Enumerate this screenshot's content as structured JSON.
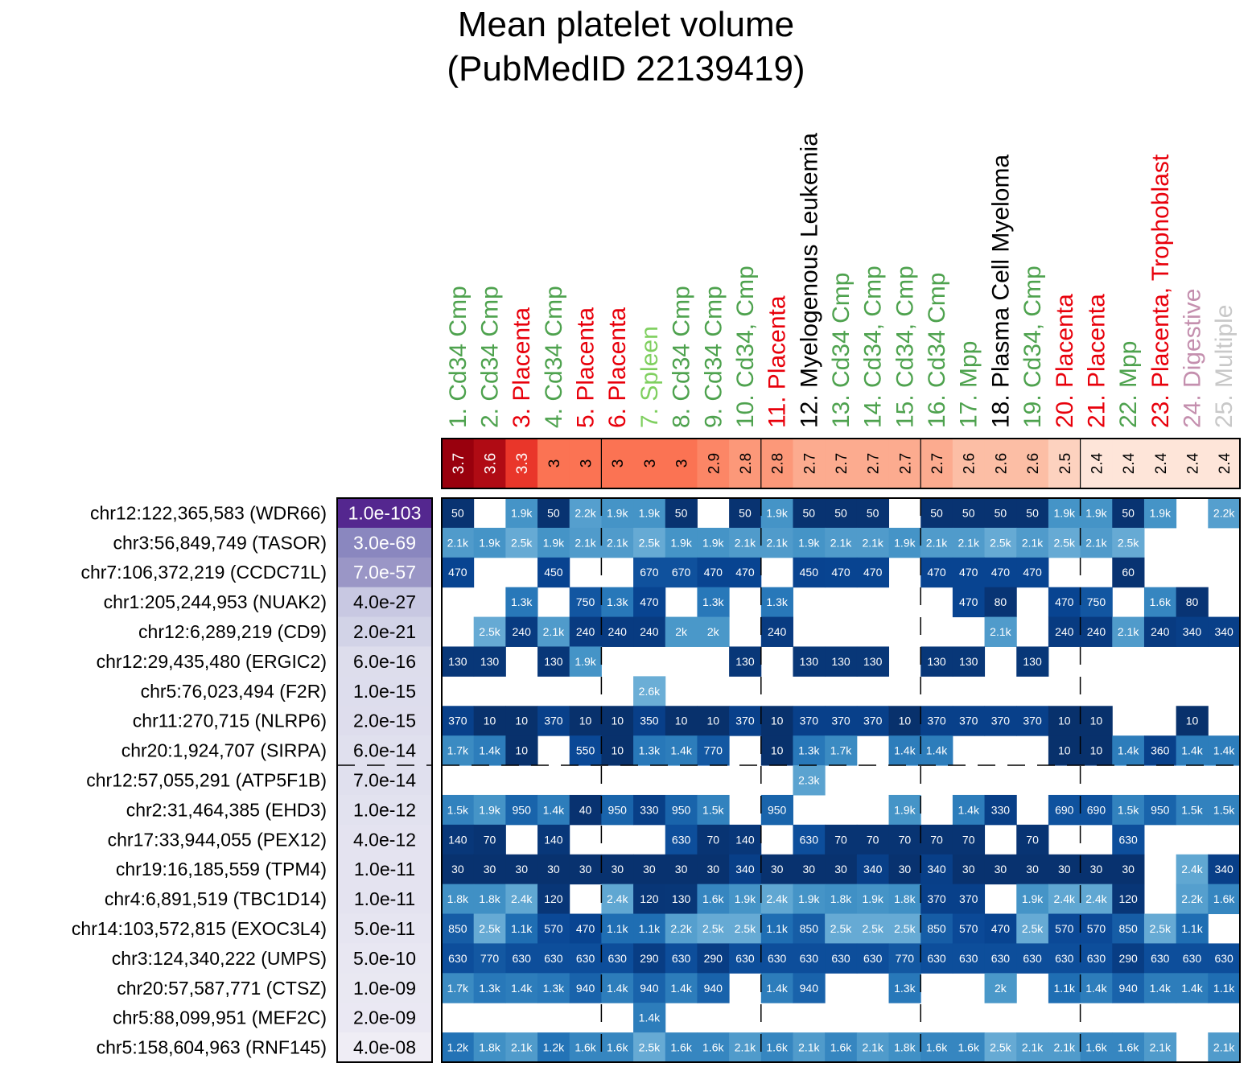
{
  "chart_data": {
    "type": "heatmap",
    "title": [
      "Mean platelet volume",
      "(PubMedID 22139419)"
    ],
    "columns": [
      {
        "label": "1. Cd34 Cmp",
        "group": "Cd34 Cmp",
        "color": "#4ea24e",
        "enrichment": "3.7"
      },
      {
        "label": "2. Cd34 Cmp",
        "group": "Cd34 Cmp",
        "color": "#4ea24e",
        "enrichment": "3.6"
      },
      {
        "label": "3. Placenta",
        "group": "Placenta",
        "color": "#e8000b",
        "enrichment": "3.3"
      },
      {
        "label": "4. Cd34 Cmp",
        "group": "Cd34 Cmp",
        "color": "#4ea24e",
        "enrichment": "3"
      },
      {
        "label": "5. Placenta",
        "group": "Placenta",
        "color": "#e8000b",
        "enrichment": "3"
      },
      {
        "label": "6. Placenta",
        "group": "Placenta",
        "color": "#e8000b",
        "enrichment": "3"
      },
      {
        "label": "7. Spleen",
        "group": "Spleen",
        "color": "#7fcf5f",
        "enrichment": "3"
      },
      {
        "label": "8. Cd34 Cmp",
        "group": "Cd34 Cmp",
        "color": "#4ea24e",
        "enrichment": "3"
      },
      {
        "label": "9. Cd34 Cmp",
        "group": "Cd34 Cmp",
        "color": "#4ea24e",
        "enrichment": "2.9"
      },
      {
        "label": "10. Cd34, Cmp",
        "group": "Cd34 Cmp",
        "color": "#4ea24e",
        "enrichment": "2.8"
      },
      {
        "label": "11. Placenta",
        "group": "Placenta",
        "color": "#e8000b",
        "enrichment": "2.8"
      },
      {
        "label": "12. Myelogenous Leukemia",
        "group": "Cancer",
        "color": "#000000",
        "enrichment": "2.7"
      },
      {
        "label": "13. Cd34 Cmp",
        "group": "Cd34 Cmp",
        "color": "#4ea24e",
        "enrichment": "2.7"
      },
      {
        "label": "14. Cd34, Cmp",
        "group": "Cd34 Cmp",
        "color": "#4ea24e",
        "enrichment": "2.7"
      },
      {
        "label": "15. Cd34, Cmp",
        "group": "Cd34 Cmp",
        "color": "#4ea24e",
        "enrichment": "2.7"
      },
      {
        "label": "16. Cd34 Cmp",
        "group": "Cd34 Cmp",
        "color": "#4ea24e",
        "enrichment": "2.7"
      },
      {
        "label": "17. Mpp",
        "group": "Mpp",
        "color": "#4ea24e",
        "enrichment": "2.6"
      },
      {
        "label": "18. Plasma Cell Myeloma",
        "group": "Cancer",
        "color": "#000000",
        "enrichment": "2.6"
      },
      {
        "label": "19. Cd34, Cmp",
        "group": "Cd34 Cmp",
        "color": "#4ea24e",
        "enrichment": "2.6"
      },
      {
        "label": "20. Placenta",
        "group": "Placenta",
        "color": "#e8000b",
        "enrichment": "2.5"
      },
      {
        "label": "21. Placenta",
        "group": "Placenta",
        "color": "#e8000b",
        "enrichment": "2.4"
      },
      {
        "label": "22. Mpp",
        "group": "Mpp",
        "color": "#4ea24e",
        "enrichment": "2.4"
      },
      {
        "label": "23. Placenta, Trophoblast",
        "group": "Placenta",
        "color": "#e8000b",
        "enrichment": "2.4"
      },
      {
        "label": "24. Digestive",
        "group": "Digestive",
        "color": "#c48fae",
        "enrichment": "2.4"
      },
      {
        "label": "25. Multiple",
        "group": "Multiple",
        "color": "#c8c8c8",
        "enrichment": "2.4"
      }
    ],
    "rows": [
      {
        "label": "chr12:122,365,583 (WDR66)",
        "pvalue": "1.0e-103",
        "cells": [
          "50",
          "",
          "1.9k",
          "50",
          "2.2k",
          "1.9k",
          "1.9k",
          "50",
          "",
          "50",
          "1.9k",
          "50",
          "50",
          "50",
          "",
          "50",
          "50",
          "50",
          "50",
          "1.9k",
          "1.9k",
          "50",
          "1.9k",
          "",
          "2.2k"
        ]
      },
      {
        "label": "chr3:56,849,749 (TASOR)",
        "pvalue": "3.0e-69",
        "cells": [
          "2.1k",
          "1.9k",
          "2.5k",
          "1.9k",
          "2.1k",
          "2.1k",
          "2.5k",
          "1.9k",
          "1.9k",
          "2.1k",
          "2.1k",
          "1.9k",
          "2.1k",
          "2.1k",
          "1.9k",
          "2.1k",
          "2.1k",
          "2.5k",
          "2.1k",
          "2.5k",
          "2.1k",
          "2.5k",
          "",
          "",
          ""
        ]
      },
      {
        "label": "chr7:106,372,219 (CCDC71L)",
        "pvalue": "7.0e-57",
        "cells": [
          "470",
          "",
          "",
          "450",
          "",
          "",
          "670",
          "670",
          "470",
          "470",
          "",
          "450",
          "470",
          "470",
          "",
          "470",
          "470",
          "470",
          "470",
          "",
          "",
          "60",
          "",
          "",
          ""
        ]
      },
      {
        "label": "chr1:205,244,953 (NUAK2)",
        "pvalue": "4.0e-27",
        "cells": [
          "",
          "",
          "1.3k",
          "",
          "750",
          "1.3k",
          "470",
          "",
          "1.3k",
          "",
          "1.3k",
          "",
          "",
          "",
          "",
          "",
          "470",
          "80",
          "",
          "470",
          "750",
          "",
          "1.6k",
          "80",
          ""
        ]
      },
      {
        "label": "chr12:6,289,219 (CD9)",
        "pvalue": "2.0e-21",
        "cells": [
          "",
          "2.5k",
          "240",
          "2.1k",
          "240",
          "240",
          "240",
          "2k",
          "2k",
          "",
          "240",
          "",
          "",
          "",
          "",
          "",
          "",
          "2.1k",
          "",
          "240",
          "240",
          "2.1k",
          "240",
          "340",
          "340"
        ]
      },
      {
        "label": "chr12:29,435,480 (ERGIC2)",
        "pvalue": "6.0e-16",
        "cells": [
          "130",
          "130",
          "",
          "130",
          "1.9k",
          "",
          "",
          "",
          "",
          "130",
          "",
          "130",
          "130",
          "130",
          "",
          "130",
          "130",
          "",
          "130",
          "",
          "",
          "",
          "",
          "",
          ""
        ]
      },
      {
        "label": "chr5:76,023,494 (F2R)",
        "pvalue": "1.0e-15",
        "cells": [
          "",
          "",
          "",
          "",
          "",
          "",
          "2.6k",
          "",
          "",
          "",
          "",
          "",
          "",
          "",
          "",
          "",
          "",
          "",
          "",
          "",
          "",
          "",
          "",
          "",
          ""
        ]
      },
      {
        "label": "chr11:270,715 (NLRP6)",
        "pvalue": "2.0e-15",
        "cells": [
          "370",
          "10",
          "10",
          "370",
          "10",
          "10",
          "350",
          "10",
          "10",
          "370",
          "10",
          "370",
          "370",
          "370",
          "10",
          "370",
          "370",
          "370",
          "370",
          "10",
          "10",
          "",
          "",
          "10",
          ""
        ]
      },
      {
        "label": "chr20:1,924,707 (SIRPA)",
        "pvalue": "6.0e-14",
        "cells": [
          "1.7k",
          "1.4k",
          "10",
          "",
          "550",
          "10",
          "1.3k",
          "1.4k",
          "770",
          "",
          "10",
          "1.3k",
          "1.7k",
          "",
          "1.4k",
          "1.4k",
          "",
          "",
          "",
          "10",
          "10",
          "1.4k",
          "360",
          "1.4k",
          "1.4k"
        ]
      },
      {
        "label": "chr12:57,055,291 (ATP5F1B)",
        "pvalue": "7.0e-14",
        "cells": [
          "",
          "",
          "",
          "",
          "",
          "",
          "",
          "",
          "",
          "",
          "",
          "2.3k",
          "",
          "",
          "",
          "",
          "",
          "",
          "",
          "",
          "",
          "",
          "",
          "",
          ""
        ]
      },
      {
        "label": "chr2:31,464,385 (EHD3)",
        "pvalue": "1.0e-12",
        "cells": [
          "1.5k",
          "1.9k",
          "950",
          "1.4k",
          "40",
          "950",
          "330",
          "950",
          "1.5k",
          "",
          "950",
          "",
          "",
          "",
          "1.9k",
          "",
          "1.4k",
          "330",
          "",
          "690",
          "690",
          "1.5k",
          "950",
          "1.5k",
          "1.5k"
        ]
      },
      {
        "label": "chr17:33,944,055 (PEX12)",
        "pvalue": "4.0e-12",
        "cells": [
          "140",
          "70",
          "",
          "140",
          "",
          "",
          "",
          "630",
          "70",
          "140",
          "",
          "630",
          "70",
          "70",
          "70",
          "70",
          "70",
          "",
          "70",
          "",
          "",
          "630",
          "",
          "",
          ""
        ]
      },
      {
        "label": "chr19:16,185,559 (TPM4)",
        "pvalue": "1.0e-11",
        "cells": [
          "30",
          "30",
          "30",
          "30",
          "30",
          "30",
          "30",
          "30",
          "30",
          "340",
          "30",
          "30",
          "30",
          "340",
          "30",
          "340",
          "30",
          "30",
          "30",
          "30",
          "30",
          "30",
          "",
          "2.4k",
          "340"
        ]
      },
      {
        "label": "chr4:6,891,519 (TBC1D14)",
        "pvalue": "1.0e-11",
        "cells": [
          "1.8k",
          "1.8k",
          "2.4k",
          "120",
          "",
          "2.4k",
          "120",
          "130",
          "1.6k",
          "1.9k",
          "2.4k",
          "1.9k",
          "1.8k",
          "1.9k",
          "1.8k",
          "370",
          "370",
          "",
          "1.9k",
          "2.4k",
          "2.4k",
          "120",
          "",
          "2.2k",
          "1.6k"
        ]
      },
      {
        "label": "chr14:103,572,815 (EXOC3L4)",
        "pvalue": "5.0e-11",
        "cells": [
          "850",
          "2.5k",
          "1.1k",
          "570",
          "470",
          "1.1k",
          "1.1k",
          "2.2k",
          "2.5k",
          "2.5k",
          "1.1k",
          "850",
          "2.5k",
          "2.5k",
          "2.5k",
          "850",
          "570",
          "470",
          "2.5k",
          "570",
          "570",
          "850",
          "2.5k",
          "1.1k",
          ""
        ]
      },
      {
        "label": "chr3:124,340,222 (UMPS)",
        "pvalue": "5.0e-10",
        "cells": [
          "630",
          "770",
          "630",
          "630",
          "630",
          "630",
          "290",
          "630",
          "290",
          "630",
          "630",
          "630",
          "630",
          "630",
          "770",
          "630",
          "630",
          "630",
          "630",
          "630",
          "630",
          "290",
          "630",
          "630",
          "630"
        ]
      },
      {
        "label": "chr20:57,587,771 (CTSZ)",
        "pvalue": "1.0e-09",
        "cells": [
          "1.7k",
          "1.3k",
          "1.4k",
          "1.3k",
          "940",
          "1.4k",
          "940",
          "1.4k",
          "940",
          "",
          "1.4k",
          "940",
          "",
          "",
          "1.3k",
          "",
          "",
          "2k",
          "",
          "1.1k",
          "1.4k",
          "940",
          "1.4k",
          "1.4k",
          "1.1k"
        ]
      },
      {
        "label": "chr5:88,099,951 (MEF2C)",
        "pvalue": "2.0e-09",
        "cells": [
          "",
          "",
          "",
          "",
          "",
          "",
          "1.4k",
          "",
          "",
          "",
          "",
          "",
          "",
          "",
          "",
          "",
          "",
          "",
          "",
          "",
          "",
          "",
          "",
          "",
          ""
        ]
      },
      {
        "label": "chr5:158,604,963 (RNF145)",
        "pvalue": "4.0e-08",
        "cells": [
          "1.2k",
          "1.8k",
          "2.1k",
          "1.2k",
          "1.6k",
          "1.6k",
          "2.5k",
          "1.6k",
          "1.6k",
          "2.1k",
          "1.6k",
          "2.1k",
          "1.6k",
          "2.1k",
          "1.8k",
          "1.6k",
          "1.6k",
          "2.5k",
          "2.1k",
          "2.1k",
          "1.6k",
          "1.6k",
          "2.1k",
          "",
          "2.1k"
        ]
      }
    ],
    "column_separators_after": [
      5,
      10,
      15,
      20
    ],
    "row_separators_after": [
      9
    ],
    "color_scales": {
      "enrichment": {
        "palette": "Reds",
        "min": 2.4,
        "max": 3.7
      },
      "pvalue": {
        "palette": "Purples"
      },
      "cells": {
        "palette": "Blues",
        "note": "darker = smaller distance"
      }
    }
  }
}
